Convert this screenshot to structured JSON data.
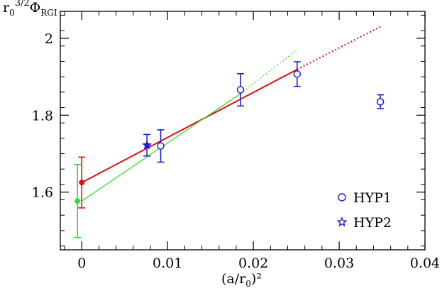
{
  "chart_data": {
    "type": "scatter",
    "xlabel": "(a/r₀)²",
    "ylabel": "r₀^{3/2} Φ_RGI",
    "xlim": [
      -0.0025,
      0.04
    ],
    "ylim": [
      1.45,
      2.07
    ],
    "x_ticks": [
      "0",
      "0.01",
      "0.02",
      "0.03",
      "0.04"
    ],
    "x_tick_values": [
      0,
      0.01,
      0.02,
      0.03,
      0.04
    ],
    "y_ticks": [
      "1.6",
      "1.8",
      "2"
    ],
    "y_tick_values": [
      1.6,
      1.8,
      2.0
    ],
    "grid": false,
    "legend_position": "bottom-right",
    "series": [
      {
        "name": "HYP1",
        "marker": "circle",
        "color": "#1f1fd6",
        "points": [
          {
            "x": 0.0092,
            "y": 1.72,
            "err": 0.042
          },
          {
            "x": 0.0185,
            "y": 1.866,
            "err": 0.042
          },
          {
            "x": 0.0251,
            "y": 1.907,
            "err": 0.032
          },
          {
            "x": 0.0348,
            "y": 1.835,
            "err": 0.018
          }
        ]
      },
      {
        "name": "HYP2",
        "marker": "star",
        "color": "#1f1fd6",
        "points": [
          {
            "x": 0.0076,
            "y": 1.722,
            "err": 0.028
          }
        ]
      }
    ],
    "extrapolations": [
      {
        "color": "#e01010",
        "point": {
          "x": 0.0,
          "y": 1.625,
          "err": 0.066
        },
        "line": {
          "x0": 0.0,
          "y0": 1.625,
          "x1": 0.0251,
          "y1": 1.919
        },
        "dotted": {
          "x0": 0.0251,
          "y0": 1.919,
          "x1": 0.0348,
          "y1": 2.03
        }
      },
      {
        "color": "#33dd33",
        "point": {
          "x": -0.0005,
          "y": 1.577,
          "err": 0.095
        },
        "line": {
          "x0": 0.0,
          "y0": 1.577,
          "x1": 0.0185,
          "y1": 1.856
        },
        "dotted": {
          "x0": 0.0185,
          "y0": 1.856,
          "x1": 0.0251,
          "y1": 1.97
        }
      }
    ]
  }
}
